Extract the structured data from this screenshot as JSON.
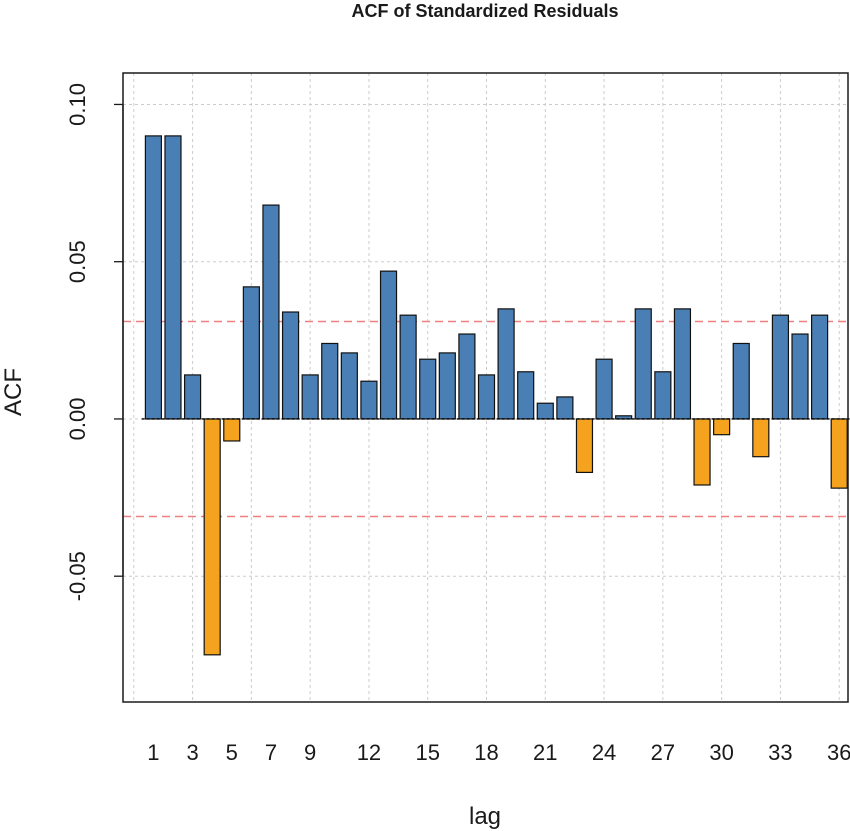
{
  "chart_data": {
    "type": "bar",
    "title": "ACF of Standardized Residuals",
    "xlabel": "lag",
    "ylabel": "ACF",
    "x": [
      1,
      2,
      3,
      4,
      5,
      6,
      7,
      8,
      9,
      10,
      11,
      12,
      13,
      14,
      15,
      16,
      17,
      18,
      19,
      20,
      21,
      22,
      23,
      24,
      25,
      26,
      27,
      28,
      29,
      30,
      31,
      32,
      33,
      34,
      35,
      36
    ],
    "values": [
      0.09,
      0.09,
      0.014,
      -0.075,
      -0.007,
      0.042,
      0.068,
      0.034,
      0.014,
      0.024,
      0.021,
      0.012,
      0.047,
      0.033,
      0.019,
      0.021,
      0.027,
      0.014,
      0.035,
      0.015,
      0.005,
      0.007,
      -0.017,
      0.019,
      0.001,
      0.035,
      0.015,
      0.035,
      -0.021,
      -0.005,
      0.024,
      -0.012,
      0.033,
      0.027,
      0.033,
      -0.022
    ],
    "xlim": [
      0,
      37
    ],
    "ylim": [
      -0.09,
      0.11
    ],
    "x_ticks": [
      1,
      3,
      5,
      7,
      9,
      12,
      15,
      18,
      21,
      24,
      27,
      30,
      33,
      36
    ],
    "y_ticks": [
      -0.05,
      0.0,
      0.05,
      0.1
    ],
    "y_tick_labels": [
      "-0.05",
      "0.00",
      "0.05",
      "0.10"
    ],
    "x_grid": [
      0,
      3,
      6,
      9,
      12,
      15,
      18,
      21,
      24,
      27,
      30,
      33,
      36
    ],
    "confidence_bound": 0.031,
    "grid": true,
    "colors": {
      "positive": "#4a7fb5",
      "negative": "#f5a21f",
      "bound": "#f08080",
      "grid": "#cccccc",
      "zero_line": "#000000"
    }
  }
}
